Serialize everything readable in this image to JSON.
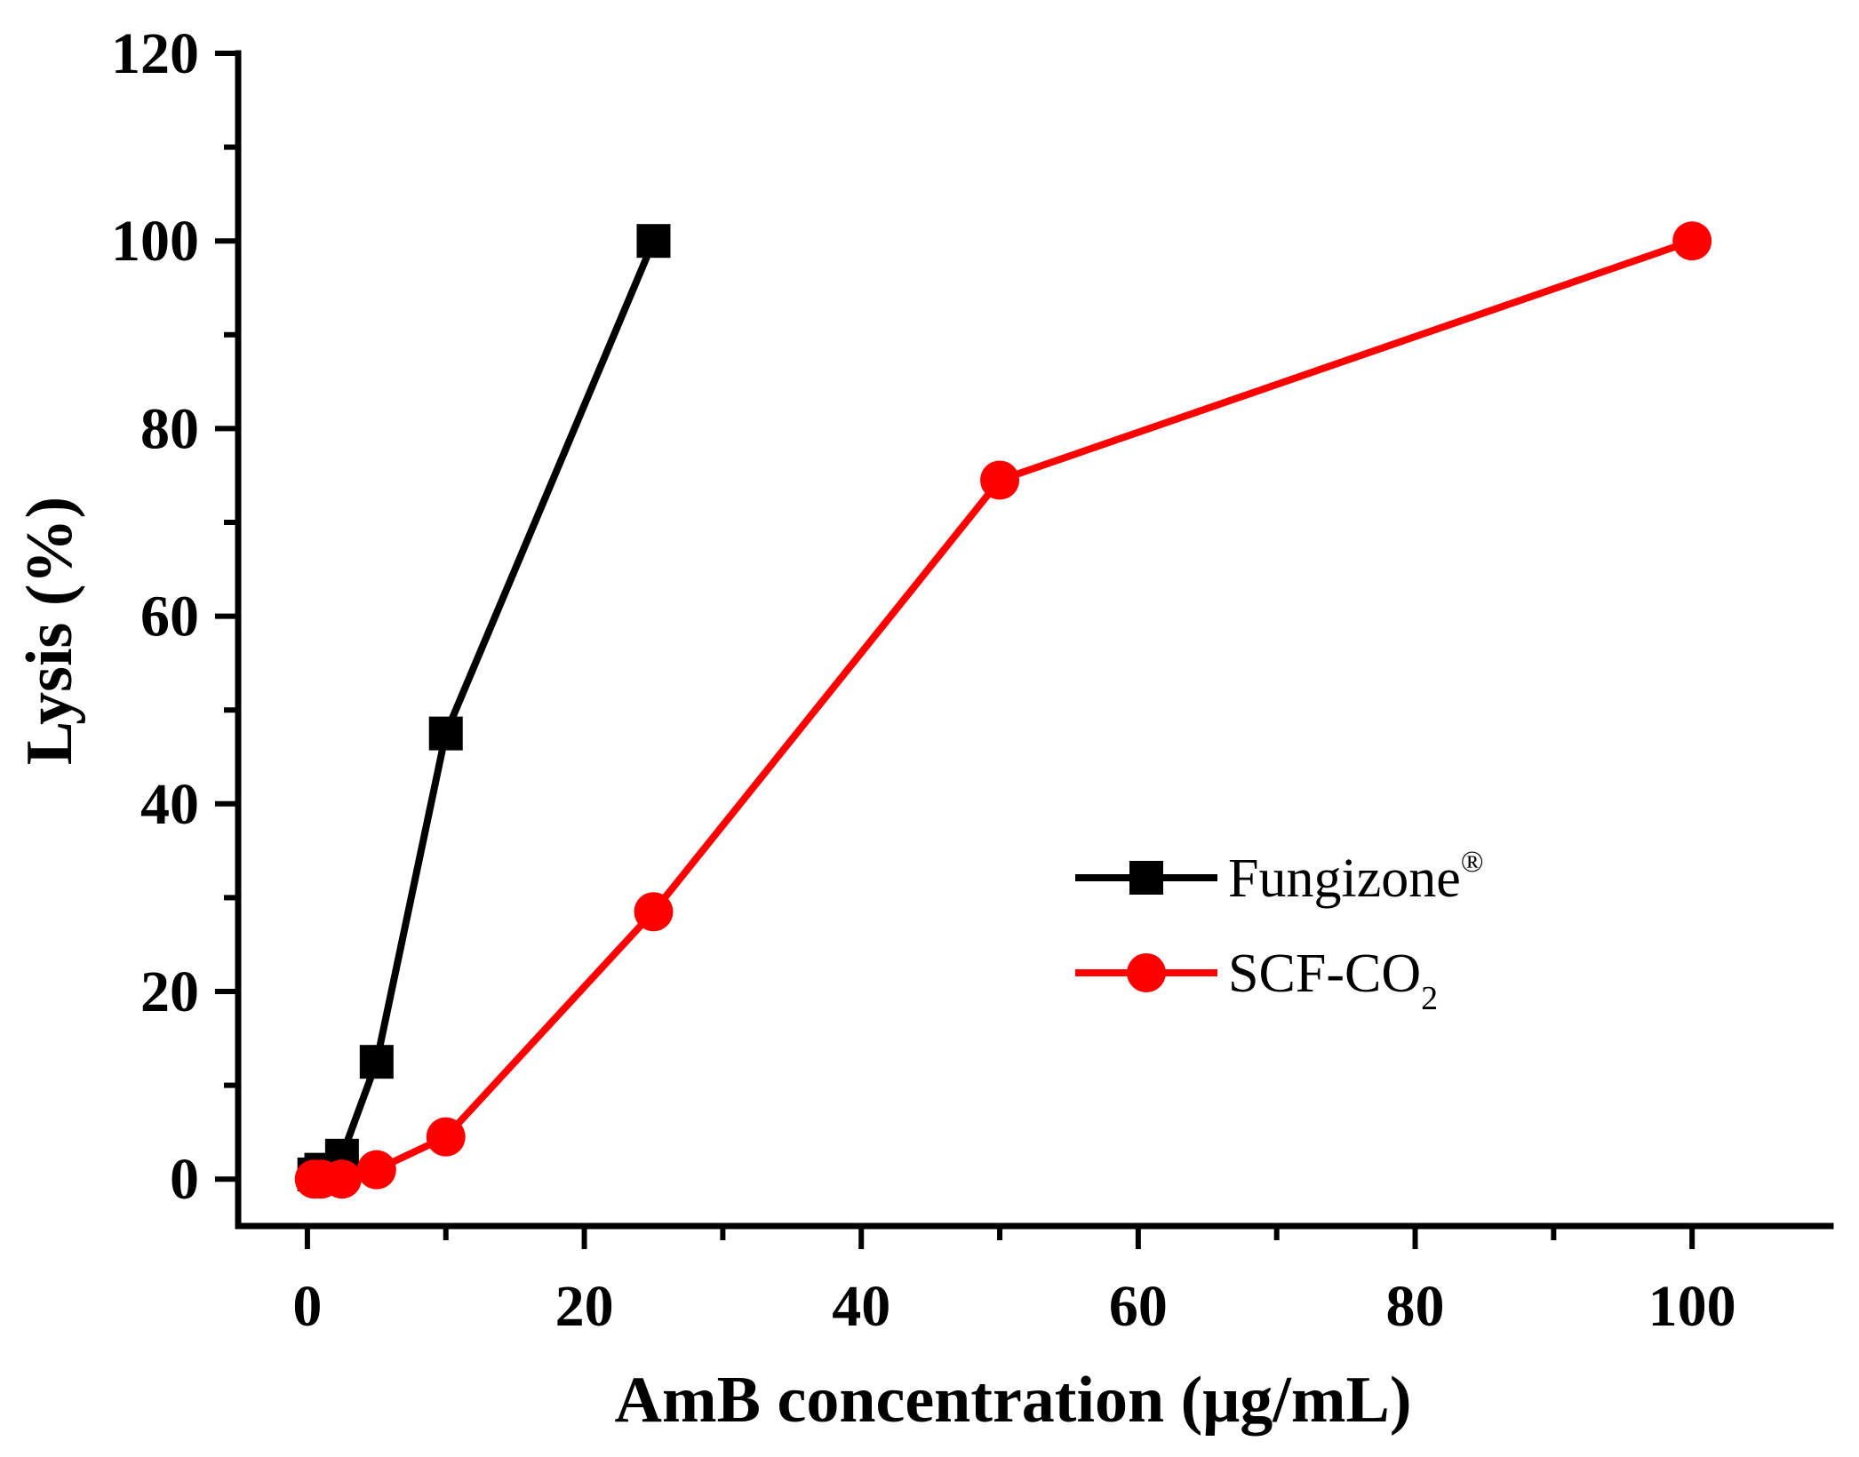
{
  "chart_data": {
    "type": "line",
    "title": "",
    "xlabel": "AmB concentration (μg/mL)",
    "ylabel": "Lysis (%)",
    "xlim": [
      -5,
      110
    ],
    "ylim": [
      -5,
      120
    ],
    "xticks": [
      0,
      20,
      40,
      60,
      80,
      100
    ],
    "yticks": [
      0,
      20,
      40,
      60,
      80,
      100,
      120
    ],
    "xtick_labels": [
      "0",
      "20",
      "40",
      "60",
      "80",
      "100"
    ],
    "ytick_labels": [
      "0",
      "20",
      "40",
      "60",
      "80",
      "100",
      "120"
    ],
    "grid": false,
    "legend_position": "center-right",
    "series": [
      {
        "name": "Fungizone",
        "name_superscript": "®",
        "marker": "square",
        "color": "#000000",
        "x": [
          0.5,
          1,
          2.5,
          5,
          10,
          25
        ],
        "y": [
          0.5,
          1,
          2.5,
          12.5,
          47.5,
          100
        ]
      },
      {
        "name": "SCF-CO",
        "name_subscript": "2",
        "marker": "circle",
        "color": "#ff0000",
        "x": [
          0.5,
          1,
          2.5,
          5,
          10,
          25,
          50,
          100
        ],
        "y": [
          0,
          0,
          0,
          1,
          4.5,
          28.5,
          74.5,
          100
        ]
      }
    ]
  }
}
